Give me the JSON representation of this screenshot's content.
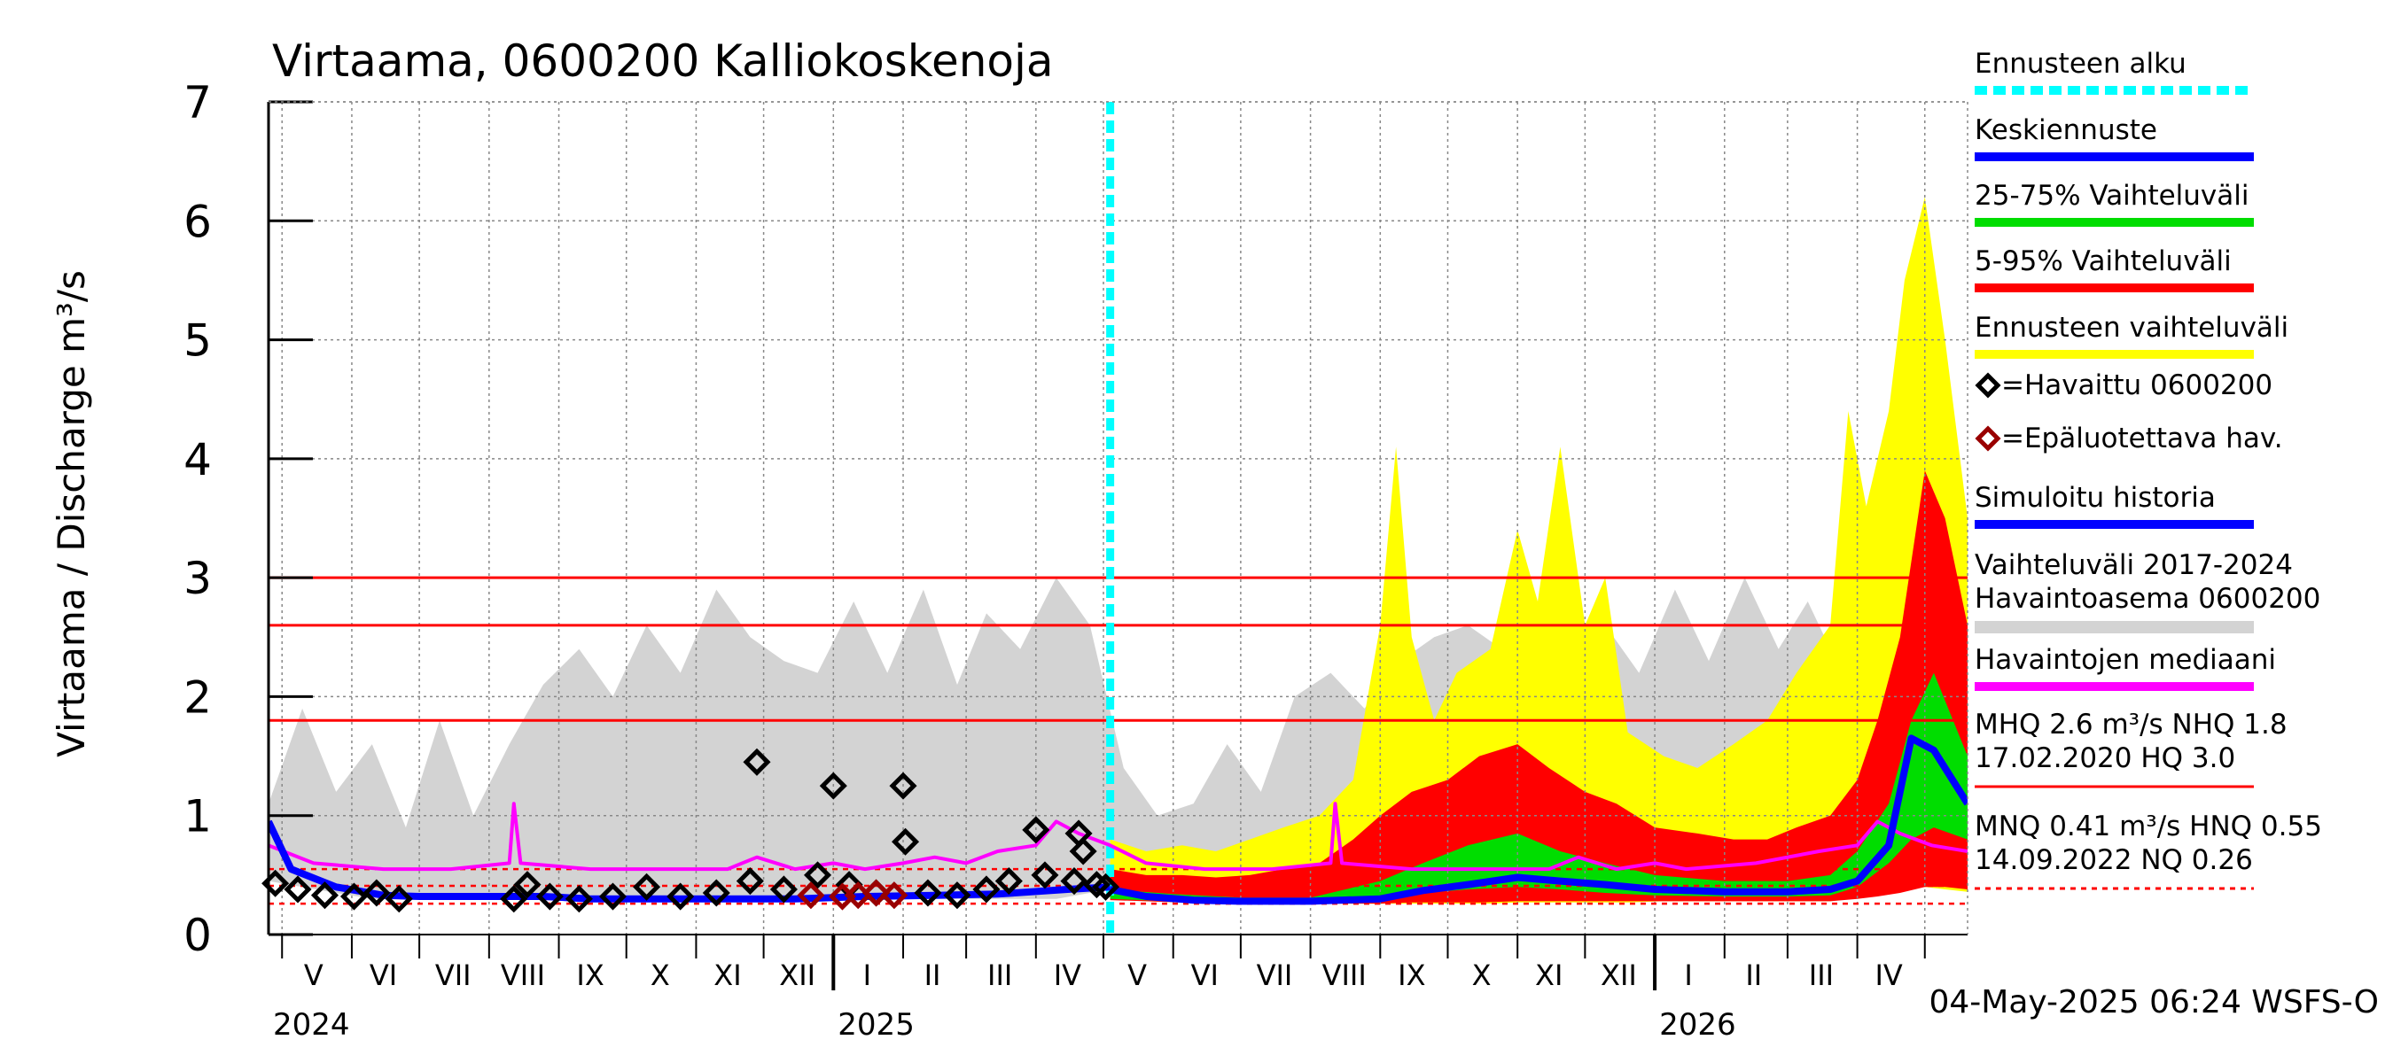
{
  "chart_data": {
    "type": "area",
    "title": "Virtaama, 0600200 Kalliokoskenoja",
    "ylabel": "Virtaama / Discharge   m³/s",
    "ylim": [
      0,
      7
    ],
    "yticks": [
      "0",
      "1",
      "2",
      "3",
      "4",
      "5",
      "6",
      "7"
    ],
    "x_start": "2024-04-25",
    "x_end": "2026-05-20",
    "forecast_start": "2025-05-04",
    "month_labels": [
      {
        "label": "V",
        "date": "2024-05-15"
      },
      {
        "label": "VI",
        "date": "2024-06-15"
      },
      {
        "label": "VII",
        "date": "2024-07-16"
      },
      {
        "label": "VIII",
        "date": "2024-08-16"
      },
      {
        "label": "IX",
        "date": "2024-09-15"
      },
      {
        "label": "X",
        "date": "2024-10-16"
      },
      {
        "label": "XI",
        "date": "2024-11-15"
      },
      {
        "label": "XII",
        "date": "2024-12-16"
      },
      {
        "label": "I",
        "date": "2025-01-16"
      },
      {
        "label": "II",
        "date": "2025-02-14"
      },
      {
        "label": "III",
        "date": "2025-03-16"
      },
      {
        "label": "IV",
        "date": "2025-04-15"
      },
      {
        "label": "V",
        "date": "2025-05-16"
      },
      {
        "label": "VI",
        "date": "2025-06-15"
      },
      {
        "label": "VII",
        "date": "2025-07-16"
      },
      {
        "label": "VIII",
        "date": "2025-08-16"
      },
      {
        "label": "IX",
        "date": "2025-09-15"
      },
      {
        "label": "X",
        "date": "2025-10-16"
      },
      {
        "label": "XI",
        "date": "2025-11-15"
      },
      {
        "label": "XII",
        "date": "2025-12-16"
      },
      {
        "label": "I",
        "date": "2026-01-16"
      },
      {
        "label": "II",
        "date": "2026-02-14"
      },
      {
        "label": "III",
        "date": "2026-03-16"
      },
      {
        "label": "IV",
        "date": "2026-04-15"
      }
    ],
    "year_labels": [
      {
        "label": "2024",
        "date": "2024-04-25"
      },
      {
        "label": "2025",
        "date": "2025-01-01"
      },
      {
        "label": "2026",
        "date": "2026-01-01"
      }
    ],
    "reference_lines": [
      {
        "name": "HQ",
        "value": 3.0,
        "color": "#ff0000",
        "style": "solid"
      },
      {
        "name": "MHQ",
        "value": 2.6,
        "color": "#ff0000",
        "style": "solid"
      },
      {
        "name": "NHQ",
        "value": 1.8,
        "color": "#ff0000",
        "style": "solid"
      },
      {
        "name": "HNQ",
        "value": 0.55,
        "color": "#ff0000",
        "style": "dashed"
      },
      {
        "name": "MNQ",
        "value": 0.41,
        "color": "#ff0000",
        "style": "dashed"
      },
      {
        "name": "NQ",
        "value": 0.26,
        "color": "#ff0000",
        "style": "dashed"
      }
    ],
    "series": [
      {
        "name": "Vaihteluväli 2017-2024 Havaintoasema 0600200",
        "kind": "band",
        "color": "#d3d3d3",
        "x": [
          "2024-04-25",
          "2024-05-10",
          "2024-05-25",
          "2024-06-10",
          "2024-06-25",
          "2024-07-10",
          "2024-07-25",
          "2024-08-10",
          "2024-08-25",
          "2024-09-10",
          "2024-09-25",
          "2024-10-10",
          "2024-10-25",
          "2024-11-10",
          "2024-11-25",
          "2024-12-10",
          "2024-12-25",
          "2025-01-10",
          "2025-01-25",
          "2025-02-10",
          "2025-02-25",
          "2025-03-10",
          "2025-03-25",
          "2025-04-10",
          "2025-04-25",
          "2025-05-10",
          "2025-05-25",
          "2025-06-10",
          "2025-06-25",
          "2025-07-10",
          "2025-07-25",
          "2025-08-10",
          "2025-08-25",
          "2025-09-10",
          "2025-09-25",
          "2025-10-10",
          "2025-10-25",
          "2025-11-10",
          "2025-11-25",
          "2025-12-10",
          "2025-12-25",
          "2026-01-10",
          "2026-01-25",
          "2026-02-10",
          "2026-02-25",
          "2026-03-10",
          "2026-03-25",
          "2026-04-10",
          "2026-04-25",
          "2026-05-10",
          "2026-05-20"
        ],
        "low": [
          0.45,
          0.4,
          0.35,
          0.3,
          0.3,
          0.3,
          0.3,
          0.3,
          0.3,
          0.3,
          0.3,
          0.3,
          0.3,
          0.3,
          0.3,
          0.3,
          0.3,
          0.3,
          0.3,
          0.3,
          0.3,
          0.3,
          0.3,
          0.3,
          0.35,
          0.4,
          0.35,
          0.3,
          0.3,
          0.3,
          0.3,
          0.3,
          0.3,
          0.3,
          0.3,
          0.3,
          0.3,
          0.3,
          0.3,
          0.3,
          0.3,
          0.3,
          0.3,
          0.3,
          0.3,
          0.3,
          0.3,
          0.35,
          0.4,
          0.4,
          0.4
        ],
        "high": [
          1.1,
          1.9,
          1.2,
          1.6,
          0.9,
          1.8,
          1.0,
          1.6,
          2.1,
          2.4,
          2.0,
          2.6,
          2.2,
          2.9,
          2.5,
          2.3,
          2.2,
          2.8,
          2.2,
          2.9,
          2.1,
          2.7,
          2.4,
          3.0,
          2.6,
          1.4,
          1.0,
          1.1,
          1.6,
          1.2,
          2.0,
          2.2,
          1.9,
          2.3,
          2.5,
          2.6,
          2.4,
          2.5,
          2.3,
          2.6,
          2.2,
          2.9,
          2.3,
          3.0,
          2.4,
          2.8,
          2.2,
          2.6,
          2.9,
          2.7,
          2.6
        ]
      },
      {
        "name": "Ennusteen vaihteluväli",
        "kind": "band",
        "color": "#ffff00",
        "x": [
          "2025-05-04",
          "2025-05-20",
          "2025-06-05",
          "2025-06-20",
          "2025-07-05",
          "2025-07-20",
          "2025-08-05",
          "2025-08-20",
          "2025-09-01",
          "2025-09-08",
          "2025-09-15",
          "2025-09-25",
          "2025-10-05",
          "2025-10-20",
          "2025-11-01",
          "2025-11-10",
          "2025-11-20",
          "2025-12-01",
          "2025-12-10",
          "2025-12-20",
          "2026-01-05",
          "2026-01-20",
          "2026-02-05",
          "2026-02-20",
          "2026-03-05",
          "2026-03-20",
          "2026-03-28",
          "2026-04-05",
          "2026-04-15",
          "2026-04-22",
          "2026-05-01",
          "2026-05-10",
          "2026-05-20"
        ],
        "low": [
          0.3,
          0.28,
          0.27,
          0.26,
          0.26,
          0.26,
          0.26,
          0.26,
          0.26,
          0.26,
          0.26,
          0.26,
          0.26,
          0.26,
          0.27,
          0.27,
          0.27,
          0.27,
          0.27,
          0.27,
          0.28,
          0.28,
          0.28,
          0.28,
          0.28,
          0.28,
          0.3,
          0.32,
          0.35,
          0.4,
          0.4,
          0.38,
          0.36
        ],
        "high": [
          0.8,
          0.7,
          0.75,
          0.7,
          0.8,
          0.9,
          1.0,
          1.3,
          2.6,
          4.1,
          2.5,
          1.8,
          2.2,
          2.4,
          3.4,
          2.8,
          4.1,
          2.6,
          3.0,
          1.7,
          1.5,
          1.4,
          1.6,
          1.8,
          2.2,
          2.6,
          4.4,
          3.6,
          4.4,
          5.5,
          6.2,
          5.0,
          3.5
        ]
      },
      {
        "name": "5-95% Vaihteluväli",
        "kind": "band",
        "color": "#ff0000",
        "x": [
          "2025-05-04",
          "2025-05-20",
          "2025-06-05",
          "2025-06-20",
          "2025-07-05",
          "2025-07-20",
          "2025-08-05",
          "2025-08-20",
          "2025-09-01",
          "2025-09-15",
          "2025-10-01",
          "2025-10-15",
          "2025-11-01",
          "2025-11-15",
          "2025-12-01",
          "2025-12-15",
          "2026-01-01",
          "2026-01-20",
          "2026-02-05",
          "2026-02-20",
          "2026-03-05",
          "2026-03-20",
          "2026-04-01",
          "2026-04-10",
          "2026-04-20",
          "2026-05-01",
          "2026-05-10",
          "2026-05-20"
        ],
        "low": [
          0.29,
          0.28,
          0.27,
          0.26,
          0.26,
          0.26,
          0.26,
          0.26,
          0.26,
          0.27,
          0.27,
          0.27,
          0.28,
          0.28,
          0.28,
          0.28,
          0.28,
          0.28,
          0.28,
          0.28,
          0.28,
          0.28,
          0.3,
          0.32,
          0.35,
          0.4,
          0.4,
          0.38
        ],
        "high": [
          0.55,
          0.5,
          0.5,
          0.48,
          0.5,
          0.55,
          0.6,
          0.8,
          1.0,
          1.2,
          1.3,
          1.5,
          1.6,
          1.4,
          1.2,
          1.1,
          0.9,
          0.85,
          0.8,
          0.8,
          0.9,
          1.0,
          1.3,
          1.8,
          2.5,
          3.9,
          3.5,
          2.6
        ]
      },
      {
        "name": "25-75% Vaihteluväli",
        "kind": "band",
        "color": "#00dd00",
        "x": [
          "2025-05-04",
          "2025-06-01",
          "2025-07-01",
          "2025-08-01",
          "2025-09-01",
          "2025-09-20",
          "2025-10-10",
          "2025-11-01",
          "2025-11-20",
          "2025-12-10",
          "2026-01-01",
          "2026-02-01",
          "2026-03-01",
          "2026-03-20",
          "2026-04-01",
          "2026-04-15",
          "2026-04-25",
          "2026-05-05",
          "2026-05-20"
        ],
        "low": [
          0.3,
          0.28,
          0.27,
          0.27,
          0.3,
          0.35,
          0.38,
          0.4,
          0.38,
          0.35,
          0.33,
          0.32,
          0.32,
          0.33,
          0.4,
          0.6,
          0.8,
          0.9,
          0.8
        ],
        "high": [
          0.38,
          0.34,
          0.31,
          0.31,
          0.45,
          0.6,
          0.75,
          0.85,
          0.7,
          0.6,
          0.5,
          0.45,
          0.45,
          0.5,
          0.7,
          1.1,
          1.8,
          2.2,
          1.5
        ]
      },
      {
        "name": "Havaintojen mediaani",
        "kind": "line",
        "color": "#ff00ff",
        "x": [
          "2024-04-25",
          "2024-05-15",
          "2024-06-15",
          "2024-07-15",
          "2024-08-10",
          "2024-08-12",
          "2024-08-15",
          "2024-09-15",
          "2024-10-15",
          "2024-11-15",
          "2024-11-28",
          "2024-12-15",
          "2025-01-01",
          "2025-01-15",
          "2025-02-01",
          "2025-02-15",
          "2025-03-01",
          "2025-03-15",
          "2025-04-01",
          "2025-04-10",
          "2025-04-20",
          "2025-05-04",
          "2025-05-20",
          "2025-06-15",
          "2025-07-15",
          "2025-08-10",
          "2025-08-12",
          "2025-08-15",
          "2025-09-15",
          "2025-10-15",
          "2025-11-15",
          "2025-11-28",
          "2025-12-15",
          "2026-01-01",
          "2026-01-15",
          "2026-02-15",
          "2026-03-15",
          "2026-04-01",
          "2026-04-10",
          "2026-04-20",
          "2026-05-04",
          "2026-05-20"
        ],
        "values": [
          0.75,
          0.6,
          0.55,
          0.55,
          0.6,
          1.1,
          0.6,
          0.55,
          0.55,
          0.55,
          0.65,
          0.55,
          0.6,
          0.55,
          0.6,
          0.65,
          0.6,
          0.7,
          0.75,
          0.95,
          0.85,
          0.75,
          0.6,
          0.55,
          0.55,
          0.6,
          1.1,
          0.6,
          0.55,
          0.55,
          0.55,
          0.65,
          0.55,
          0.6,
          0.55,
          0.6,
          0.7,
          0.75,
          0.95,
          0.85,
          0.75,
          0.7
        ]
      },
      {
        "name": "Simuloitu historia",
        "kind": "line",
        "color": "#0000ff",
        "x": [
          "2024-04-25",
          "2024-05-05",
          "2024-05-25",
          "2024-06-15",
          "2024-07-01",
          "2024-07-20",
          "2024-08-10",
          "2024-08-25",
          "2024-09-15",
          "2024-10-15",
          "2024-11-15",
          "2024-12-15",
          "2025-01-15",
          "2025-02-15",
          "2025-03-15",
          "2025-04-15",
          "2025-05-04"
        ],
        "values": [
          0.95,
          0.55,
          0.4,
          0.33,
          0.32,
          0.32,
          0.32,
          0.32,
          0.3,
          0.3,
          0.3,
          0.3,
          0.32,
          0.33,
          0.34,
          0.38,
          0.4
        ]
      },
      {
        "name": "Keskiennuste",
        "kind": "line",
        "color": "#0000ff",
        "x": [
          "2025-05-04",
          "2025-05-20",
          "2025-06-10",
          "2025-07-01",
          "2025-08-01",
          "2025-09-01",
          "2025-09-20",
          "2025-10-10",
          "2025-11-01",
          "2025-11-20",
          "2025-12-10",
          "2026-01-01",
          "2026-02-01",
          "2026-03-01",
          "2026-03-20",
          "2026-04-01",
          "2026-04-15",
          "2026-04-25",
          "2026-05-05",
          "2026-05-20"
        ],
        "values": [
          0.38,
          0.32,
          0.29,
          0.28,
          0.28,
          0.3,
          0.37,
          0.42,
          0.48,
          0.45,
          0.42,
          0.38,
          0.36,
          0.36,
          0.38,
          0.45,
          0.75,
          1.65,
          1.55,
          1.1
        ]
      },
      {
        "name": "=Havaittu 0600200",
        "kind": "markers",
        "color": "#000000",
        "points": [
          [
            "2024-04-28",
            0.43
          ],
          [
            "2024-05-08",
            0.38
          ],
          [
            "2024-05-20",
            0.33
          ],
          [
            "2024-06-02",
            0.32
          ],
          [
            "2024-06-12",
            0.35
          ],
          [
            "2024-06-22",
            0.3
          ],
          [
            "2024-08-12",
            0.3
          ],
          [
            "2024-08-18",
            0.42
          ],
          [
            "2024-08-28",
            0.32
          ],
          [
            "2024-09-10",
            0.3
          ],
          [
            "2024-09-25",
            0.32
          ],
          [
            "2024-10-10",
            0.4
          ],
          [
            "2024-10-25",
            0.32
          ],
          [
            "2024-11-10",
            0.35
          ],
          [
            "2024-11-25",
            0.45
          ],
          [
            "2024-11-28",
            1.45
          ],
          [
            "2024-12-10",
            0.38
          ],
          [
            "2024-12-25",
            0.5
          ],
          [
            "2025-01-01",
            1.25
          ],
          [
            "2025-01-08",
            0.42
          ],
          [
            "2025-01-20",
            0.35
          ],
          [
            "2025-02-01",
            1.25
          ],
          [
            "2025-02-02",
            0.78
          ],
          [
            "2025-02-12",
            0.35
          ],
          [
            "2025-02-25",
            0.33
          ],
          [
            "2025-03-10",
            0.38
          ],
          [
            "2025-03-20",
            0.45
          ],
          [
            "2025-04-01",
            0.88
          ],
          [
            "2025-04-05",
            0.5
          ],
          [
            "2025-04-18",
            0.45
          ],
          [
            "2025-04-20",
            0.85
          ],
          [
            "2025-04-22",
            0.7
          ],
          [
            "2025-04-28",
            0.42
          ],
          [
            "2025-05-02",
            0.4
          ]
        ]
      },
      {
        "name": "=Epäluotettava hav.",
        "kind": "markers",
        "color": "#990000",
        "points": [
          [
            "2024-12-22",
            0.33
          ],
          [
            "2025-01-05",
            0.32
          ],
          [
            "2025-01-12",
            0.33
          ],
          [
            "2025-01-20",
            0.35
          ],
          [
            "2025-01-28",
            0.33
          ]
        ]
      }
    ],
    "legend": {
      "placement": "right",
      "items": [
        {
          "label": "Ennusteen alku",
          "color": "#00ffff",
          "kind": "dashed"
        },
        {
          "label": "Keskiennuste",
          "color": "#0000ff",
          "kind": "line"
        },
        {
          "label": "25-75% Vaihteluväli",
          "color": "#00dd00",
          "kind": "line"
        },
        {
          "label": "5-95% Vaihteluväli",
          "color": "#ff0000",
          "kind": "line"
        },
        {
          "label": "Ennusteen vaihteluväli",
          "color": "#ffff00",
          "kind": "line"
        },
        {
          "label": "=Havaittu 0600200",
          "color": "#000000",
          "kind": "diamond"
        },
        {
          "label": "=Epäluotettava hav.",
          "color": "#990000",
          "kind": "diamond"
        },
        {
          "label": "Simuloitu historia",
          "color": "#0000ff",
          "kind": "line"
        },
        {
          "label": "Vaihteluväli 2017-2024",
          "label2": " Havaintoasema 0600200",
          "color": "#d3d3d3",
          "kind": "line"
        },
        {
          "label": "Havaintojen mediaani",
          "color": "#ff00ff",
          "kind": "line"
        },
        {
          "label": "MHQ  2.6 m³/s NHQ  1.8",
          "label2": "17.02.2020 HQ  3.0",
          "color": "#ff0000",
          "kind": "line"
        },
        {
          "label": "MNQ 0.41 m³/s HNQ 0.55",
          "label2": "14.09.2022 NQ 0.26",
          "color": "#ff0000",
          "kind": "dashed"
        }
      ]
    },
    "footer": "04-May-2025 06:24 WSFS-O",
    "grid": true
  }
}
